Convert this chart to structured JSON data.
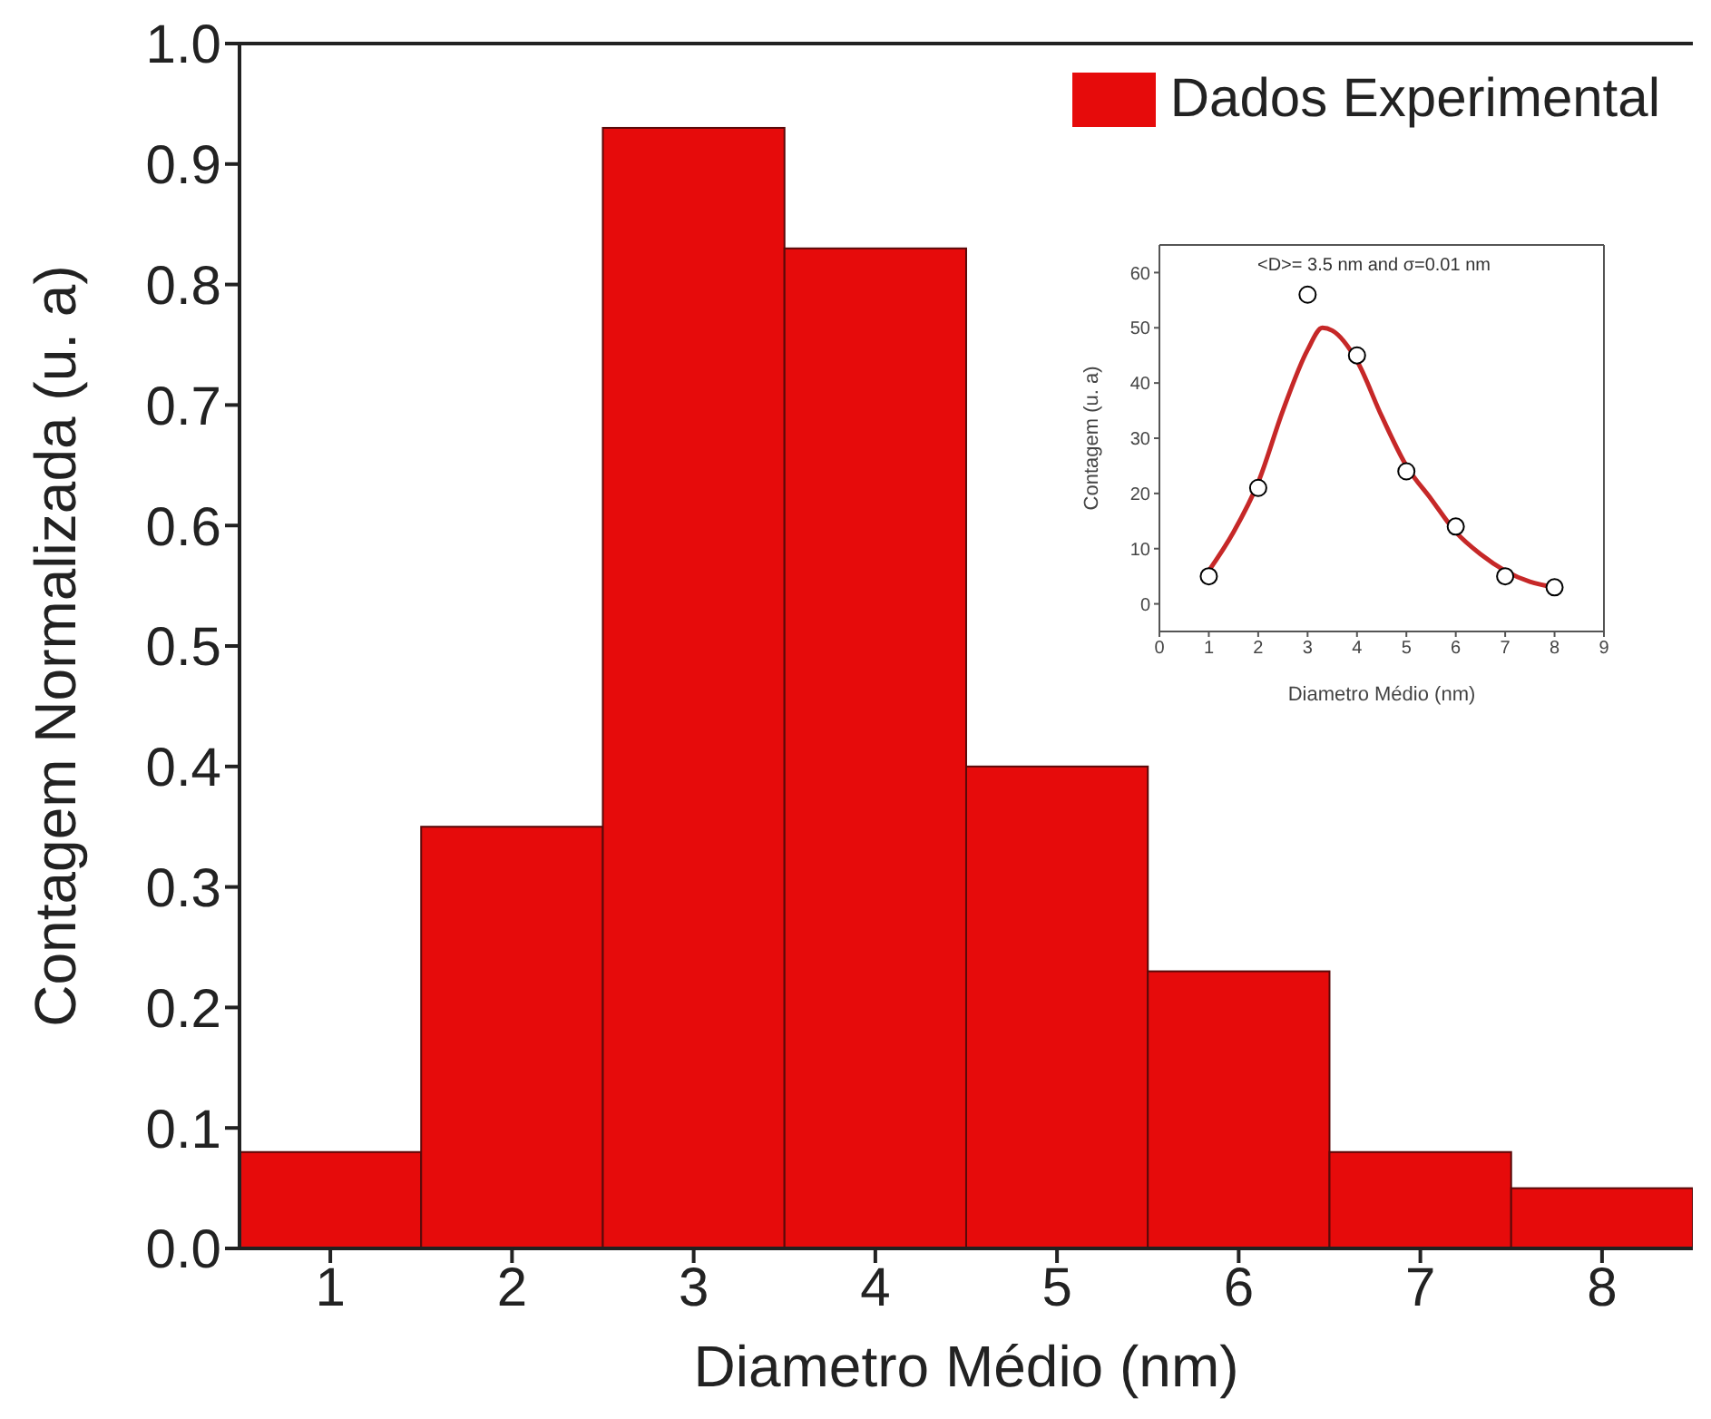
{
  "chart_data": [
    {
      "type": "histogram",
      "xlabel": "Diametro Médio (nm)",
      "ylabel": "Contagem Normalizada (u. a)",
      "bins": [
        0.5,
        1.5,
        2.5,
        3.5,
        4.5,
        5.5,
        6.5,
        7.5,
        8.5
      ],
      "series": [
        {
          "name": "Dados Experimental",
          "color": "#e60b0b",
          "values": [
            0.08,
            0.35,
            0.93,
            0.83,
            0.4,
            0.23,
            0.08,
            0.05
          ]
        }
      ],
      "xlim": [
        0.5,
        8.5
      ],
      "xticks": [
        1,
        2,
        3,
        4,
        5,
        6,
        7,
        8
      ],
      "ylim": [
        0,
        1.0
      ],
      "yticks": [
        {
          "value": 0,
          "label": "0.0"
        },
        0.1,
        0.2,
        0.3,
        0.4,
        0.5,
        0.6,
        0.7,
        0.8,
        0.9,
        {
          "value": 1,
          "label": "1.0"
        }
      ],
      "legend": "top right",
      "grid": false
    },
    {
      "type": "scatter",
      "xlabel": "Diametro Médio (nm)",
      "ylabel": "Contagem (u. a)",
      "annotations": [
        "<D>= 3.5 nm and σ=0.01 nm"
      ],
      "series": [
        {
          "type": "scatter",
          "color": "#000000",
          "marker": "circle",
          "x": [
            1,
            2,
            3,
            4,
            5,
            6,
            7,
            8
          ],
          "values": [
            5,
            21,
            56,
            45,
            24,
            14,
            5,
            3
          ]
        },
        {
          "type": "line",
          "color": "#c62828",
          "marker": "none",
          "line_style": "solid",
          "x": [
            1,
            1.5,
            2,
            2.5,
            3,
            3.3,
            3.5,
            4,
            4.5,
            5,
            5.5,
            6,
            6.5,
            7,
            7.5,
            8
          ],
          "values": [
            6,
            13,
            22,
            35,
            46,
            50,
            49.5,
            44,
            34,
            25,
            19,
            13,
            9,
            6,
            4,
            3
          ]
        }
      ],
      "xlim": [
        0,
        9
      ],
      "xticks": [
        0,
        1,
        2,
        3,
        4,
        5,
        6,
        7,
        8,
        9
      ],
      "ylim": [
        -5,
        65
      ],
      "yticks": [
        0,
        10,
        20,
        30,
        40,
        50,
        60
      ],
      "grid": false
    }
  ]
}
